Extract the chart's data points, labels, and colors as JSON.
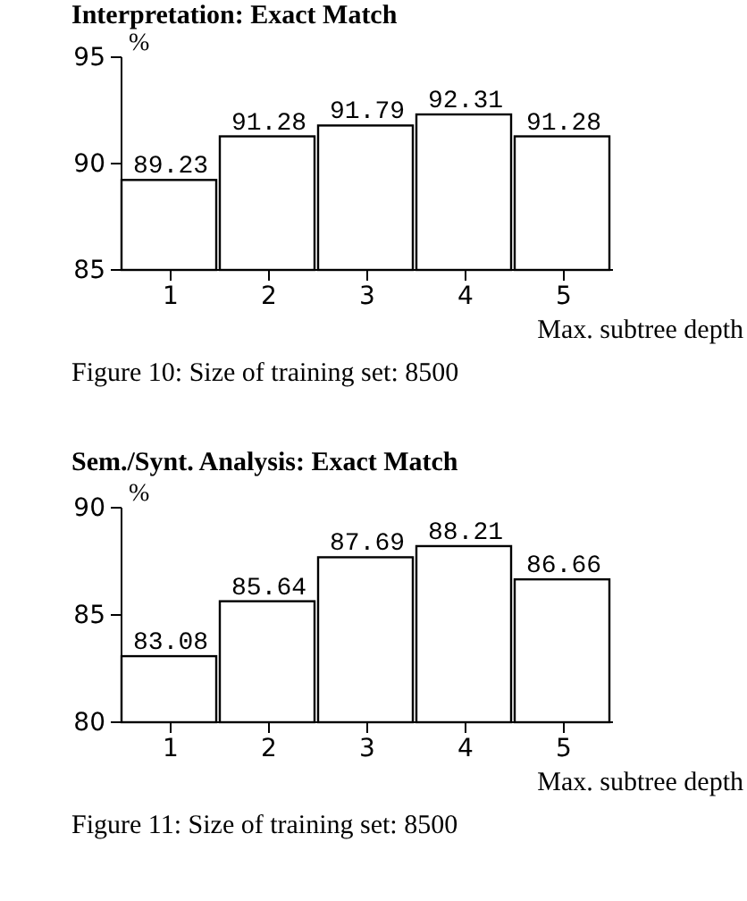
{
  "chart_data": [
    {
      "type": "bar",
      "title": "Interpretation: Exact Match",
      "ylabel": "%",
      "xlabel": "Max. subtree depth",
      "categories": [
        "1",
        "2",
        "3",
        "4",
        "5"
      ],
      "values": [
        89.23,
        91.28,
        91.79,
        92.31,
        91.28
      ],
      "color": "#ffffff",
      "ylim": [
        85,
        95
      ],
      "yticks": [
        85,
        90,
        95
      ],
      "data_labels": true,
      "annotations": [
        "Figure 10: Size of training set: 8500"
      ]
    },
    {
      "type": "bar",
      "title": "Sem./Synt. Analysis: Exact Match",
      "ylabel": "%",
      "xlabel": "Max. subtree depth",
      "categories": [
        "1",
        "2",
        "3",
        "4",
        "5"
      ],
      "values": [
        83.08,
        85.64,
        87.69,
        88.21,
        86.66
      ],
      "color": "#ffffff",
      "ylim": [
        80,
        90
      ],
      "yticks": [
        80,
        85,
        90
      ],
      "data_labels": true,
      "annotations": [
        "Figure 11: Size of training set: 8500"
      ]
    }
  ]
}
